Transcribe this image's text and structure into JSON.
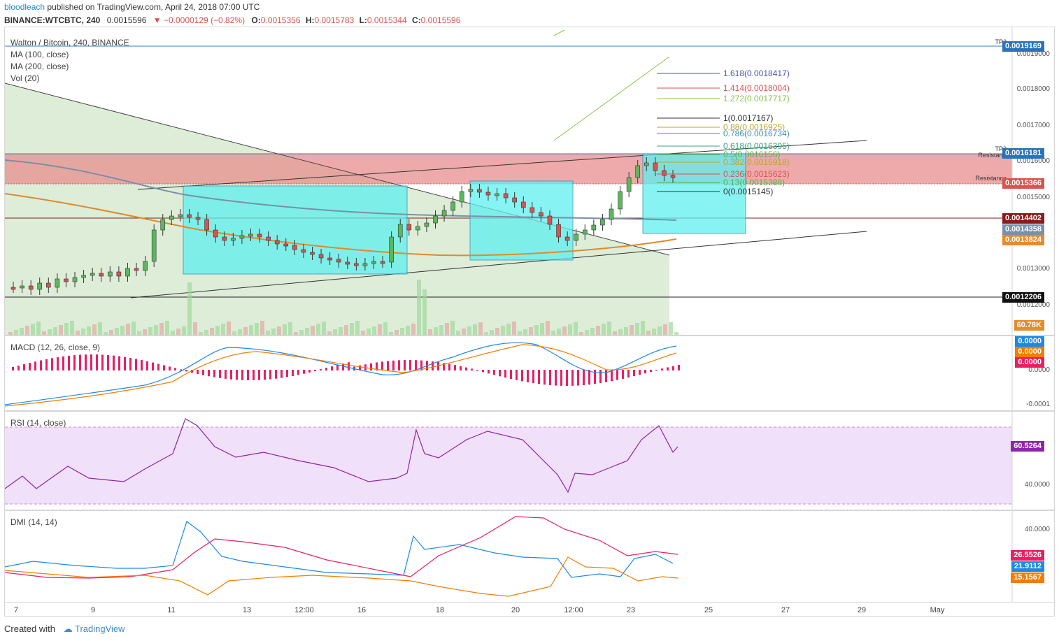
{
  "header": {
    "user": "bloodleach",
    "published": "published on TradingView.com, April 24, 2018 07:00 UTC",
    "symbol": "BINANCE:WTCBTC, 240",
    "last": "0.0015596",
    "change": "▼ −0.0000129 (−0.82%)",
    "o_label": "O:",
    "o_value": "0.0015356",
    "h_label": "H:",
    "h_value": "0.0015783",
    "l_label": "L:",
    "l_value": "0.0015344",
    "c_label": "C:",
    "c_value": "0.0015596"
  },
  "main_legend": {
    "title": "Walton / Bitcoin, 240, BINANCE",
    "items": [
      "MA (100, close)",
      "MA (200, close)",
      "Vol (20)"
    ]
  },
  "price_axis": {
    "ticks": [
      "0.0019000",
      "0.0018000",
      "0.0017000",
      "0.0016000",
      "0.0015000",
      "0.0013000",
      "0.0012000"
    ]
  },
  "price_badges": [
    {
      "label": "0.0019169",
      "color": "#2a73b8"
    },
    {
      "label": "0.0016181",
      "color": "#2a73b8"
    },
    {
      "label": "0.0015366",
      "color": "#d9534f"
    },
    {
      "label": "0.0014402",
      "color": "#8b1a1a"
    },
    {
      "label": "0.0014358",
      "color": "#7a8fa8"
    },
    {
      "label": "0.0013824",
      "color": "#e98b2a"
    },
    {
      "label": "0.0012206",
      "color": "#111111"
    },
    {
      "label": "60.78K",
      "color": "#e98b2a"
    }
  ],
  "annotations": {
    "tp2_top": "TP2",
    "tp2_zone": "TP2",
    "resistance_top": "Resistance",
    "resistance_bottom": "Resistance"
  },
  "fib_levels": [
    {
      "label": "1.618(0.0018417)",
      "color": "#4a54b5"
    },
    {
      "label": "1.414(0.0018004)",
      "color": "#d9534f"
    },
    {
      "label": "1.272(0.0017717)",
      "color": "#8bc34a"
    },
    {
      "label": "1(0.0017167)",
      "color": "#333333"
    },
    {
      "label": "0.88(0.0016925)",
      "color": "#b5a535"
    },
    {
      "label": "0.786(0.0016734)",
      "color": "#3d8fb5"
    },
    {
      "label": "0.618(0.0016395)",
      "color": "#3aa37a"
    },
    {
      "label": "0.5(0.0016156)",
      "color": "#55b04a"
    },
    {
      "label": "0.382(0.0015918)",
      "color": "#b5a535"
    },
    {
      "label": "0.236(0.0015623)",
      "color": "#d9534f"
    },
    {
      "label": "0.13(0.0015388)",
      "color": "#55b04a"
    },
    {
      "label": "0(0.0015145)",
      "color": "#333333"
    }
  ],
  "macd": {
    "title": "MACD (12, 26, close, 9)",
    "ticks": [
      "0.0000",
      "-0.0001"
    ],
    "badges": [
      {
        "label": "0.0000",
        "color": "#1e88e5"
      },
      {
        "label": "0.0000",
        "color": "#f57c00"
      },
      {
        "label": "0.0000",
        "color": "#e91e63"
      }
    ]
  },
  "rsi": {
    "title": "RSI (14, close)",
    "ticks": [
      "40.0000"
    ],
    "badges": [
      {
        "label": "60.5264",
        "color": "#8e24aa"
      }
    ]
  },
  "dmi": {
    "title": "DMI (14, 14)",
    "ticks": [
      "40.0000"
    ],
    "badges": [
      {
        "label": "26.5526",
        "color": "#e91e63"
      },
      {
        "label": "21.9112",
        "color": "#1e88e5"
      },
      {
        "label": "15.1567",
        "color": "#f57c00"
      }
    ]
  },
  "time_axis": {
    "ticks": [
      "7",
      "9",
      "11",
      "13",
      "12:00",
      "16",
      "18",
      "20",
      "12:00",
      "23",
      "25",
      "27",
      "29",
      "May"
    ]
  },
  "footer": {
    "created": "Created with",
    "brand": "TradingView"
  },
  "chart_data": {
    "type": "line",
    "title": "Walton / Bitcoin, 240, BINANCE",
    "xlabel": "",
    "ylabel": "",
    "x": [
      "7",
      "9",
      "11",
      "13",
      "12:00",
      "16",
      "18",
      "20",
      "12:00",
      "23"
    ],
    "series": [
      {
        "name": "Walton / Bitcoin",
        "values": [
          0.00125,
          0.00124,
          0.00127,
          0.00138,
          0.00133,
          0.0013,
          0.00144,
          0.0015,
          0.00142,
          0.00156
        ]
      },
      {
        "name": "MA (100, close)",
        "values": [
          0.0016,
          0.00156,
          0.00153,
          0.00149,
          0.00147,
          0.00145,
          0.00144,
          0.00144,
          0.00144,
          0.00144
        ]
      },
      {
        "name": "MA (200, close)",
        "values": [
          0.00151,
          0.00148,
          0.00146,
          0.00142,
          0.0014,
          0.00138,
          0.00137,
          0.00137,
          0.00137,
          0.00138
        ]
      }
    ],
    "ylim": [
      0.00119,
      0.00196
    ],
    "grid": false,
    "legend": "top-left"
  }
}
